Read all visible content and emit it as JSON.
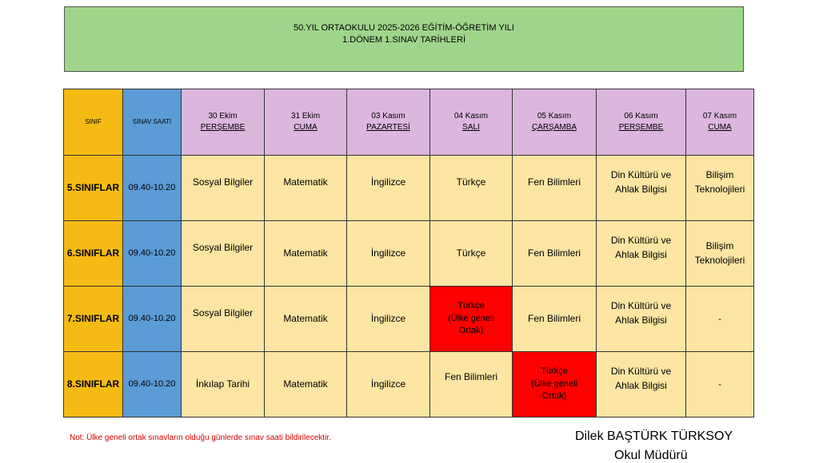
{
  "header": {
    "line1": "50.YIL ORTAOKULU 2025-2026  EĞİTİM-ÖĞRETİM YILI",
    "line2": "1.DÖNEM 1.SINAV TARİHLERİ"
  },
  "table": {
    "col_sinif": "SINIF",
    "col_saat": "SINAV SAATİ",
    "days": [
      {
        "date": "30 Ekim",
        "day": "PERŞEMBE"
      },
      {
        "date": "31 Ekim",
        "day": "CUMA"
      },
      {
        "date": "03 Kasım",
        "day": "PAZARTESİ"
      },
      {
        "date": "04 Kasım",
        "day": "SALI"
      },
      {
        "date": "05 Kasım",
        "day": "ÇARŞAMBA"
      },
      {
        "date": "06 Kasım",
        "day": "PERŞEMBE"
      },
      {
        "date": "07 Kasım",
        "day": "CUMA"
      }
    ],
    "rows": [
      {
        "sinif": "5.SINIFLAR",
        "saat": "09.40-10.20",
        "cells": [
          "Sosyal Bilgiler",
          "Matematik",
          "İngilizce",
          "Türkçe",
          "Fen Bilimleri",
          "Din Kültürü ve\nAhlak Bilgisi",
          "Bilişim\nTeknolojileri"
        ]
      },
      {
        "sinif": "6.SINIFLAR",
        "saat": "09.40-10.20",
        "cells": [
          "Sosyal Bilgiler",
          "Matematik",
          "İngilizce",
          "Türkçe",
          "Fen Bilimleri",
          "Din Kültürü ve\nAhlak Bilgisi",
          "Bilişim\nTeknolojileri"
        ]
      },
      {
        "sinif": "7.SINIFLAR",
        "saat": "09.40-10.20",
        "cells": [
          "Sosyal Bilgiler",
          "Matematik",
          "İngilizce",
          "Türkçe\n(Ülke geneli\nOrtak)",
          "Fen Bilimleri",
          "Din Kültürü ve\nAhlak Bilgisi",
          "-"
        ]
      },
      {
        "sinif": "8.SINIFLAR",
        "saat": "09.40-10.20",
        "cells": [
          "İnkılap Tarihi",
          "Matematik",
          "İngilizce",
          "Fen Bilimleri",
          "Türkçe\n(Ülke geneli\nOrtak)",
          "Din Kültürü ve\nAhlak Bilgisi",
          "-"
        ]
      }
    ],
    "highlight_color": "#ff0000"
  },
  "note": "Not: Ülke geneli ortak sınavların olduğu günlerde sınav saati bildirilecektir.",
  "signature": {
    "name": "Dilek BAŞTÜRK TÜRKSOY",
    "title": "Okul Müdürü"
  }
}
